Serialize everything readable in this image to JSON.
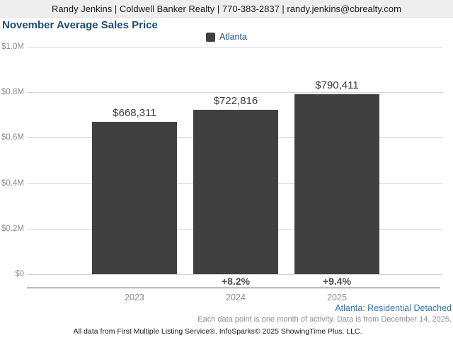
{
  "header": {
    "contact_line": "Randy Jenkins | Coldwell Banker Realty | 770-383-2837 | randy.jenkins@cbrealty.com"
  },
  "title": "November Average Sales Price",
  "legend": {
    "label": "Atlanta",
    "swatch_color": "#404040"
  },
  "chart_data": {
    "type": "bar",
    "title": "November Average Sales Price",
    "series_name": "Atlanta",
    "categories": [
      "2023",
      "2024",
      "2025"
    ],
    "values": [
      668311,
      722816,
      790411
    ],
    "value_labels": [
      "$668,311",
      "$722,816",
      "$790,411"
    ],
    "pct_change_labels": [
      "",
      "+8.2%",
      "+9.4%"
    ],
    "xlabel": "",
    "ylabel": "",
    "ylim": [
      0,
      1000000
    ],
    "ytick_values": [
      0,
      200000,
      400000,
      600000,
      800000,
      1000000
    ],
    "ytick_labels": [
      "$0",
      "$0.2M",
      "$0.4M",
      "$0.6M",
      "$0.8M",
      "$1.0M"
    ],
    "grid": true,
    "legend_position": "top-center",
    "bar_color": "#404040"
  },
  "footer": {
    "series_note": "Atlanta: Residential Detached",
    "data_note": "Each data point is one month of activity. Data is from December 14, 2025.",
    "attribution": "All data from First Multiple Listing Service®. InfoSparks© 2025 ShowingTime Plus, LLC."
  },
  "colors": {
    "header_background": "#eeeeee",
    "title_text": "#1e4d78",
    "bar_fill": "#404040",
    "gridline": "#d4d4d4",
    "axis_line": "#4a4a4a",
    "tick_text": "#8c8c8c",
    "value_text": "#3c3c3c",
    "series_note_text": "#3a76ad"
  }
}
